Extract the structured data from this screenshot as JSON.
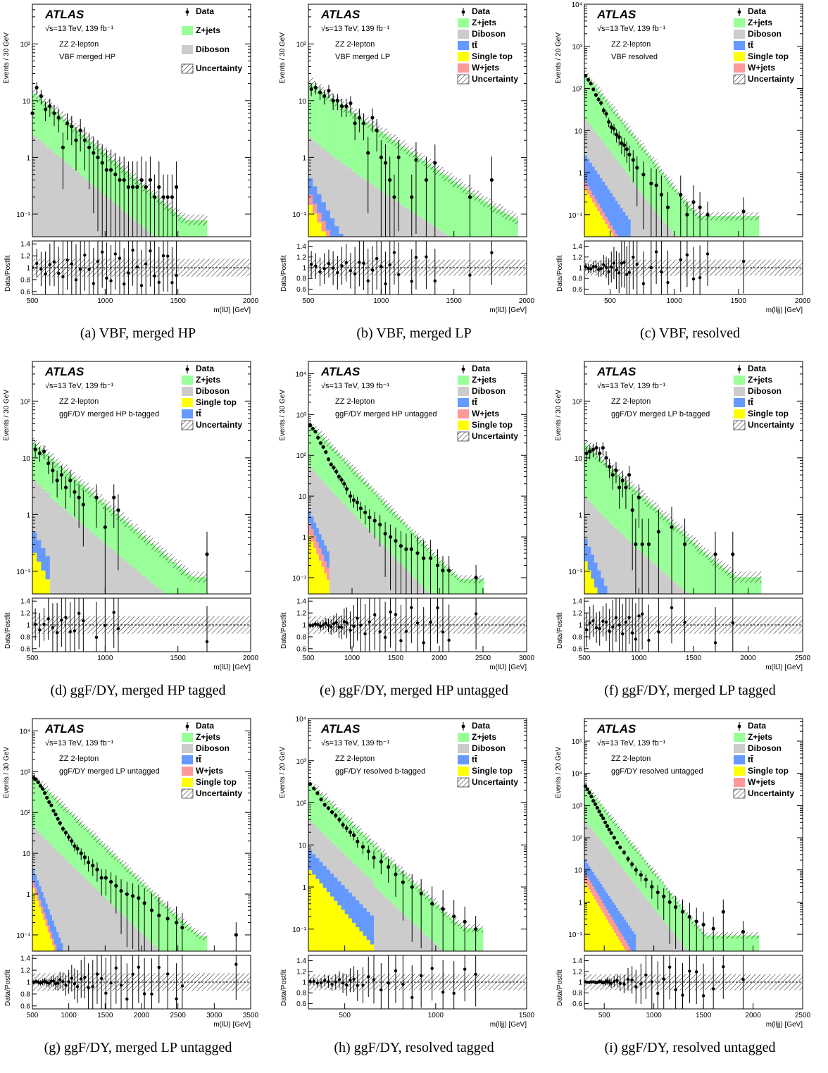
{
  "legend_names": {
    "data": "Data",
    "zjets": "Z+jets",
    "diboson": "Diboson",
    "ttbar": "tt̄",
    "singletop": "Single top",
    "wjets": "W+jets",
    "unc": "Uncertainty"
  },
  "colors": {
    "zjets": "#99ff99",
    "diboson": "#cccccc",
    "ttbar": "#6699ff",
    "singletop": "#ffff00",
    "wjets": "#ff9999",
    "data": "#000000"
  },
  "atlas_label": "ATLAS",
  "energy_lumi": "√s=13 TeV, 139 fb⁻¹",
  "channel": "ZZ 2-lepton",
  "ratio_ylabel": "Data/Postfit",
  "chart_data": [
    {
      "id": "a",
      "type": "histogram",
      "caption": "(a)  VBF, merged HP",
      "region": "VBF merged HP",
      "ylabel": "Events / 30 GeV",
      "xlabel": "m(llJ) [GeV]",
      "xlim": [
        500,
        2000
      ],
      "ylim": [
        0.04,
        500
      ],
      "ylog": true,
      "xticks": [
        500,
        1000,
        1500,
        2000
      ],
      "legend": [
        "data",
        "zjets",
        "diboson",
        "unc"
      ],
      "binw": 30,
      "z_start": 11,
      "z_decay": 0.005,
      "d_frac": 0.22,
      "z_floor": 0.06,
      "top_end": 1250,
      "t_frac": 0,
      "st_frac": 0,
      "w_frac": 0,
      "data_x": [
        500,
        530,
        560,
        590,
        620,
        650,
        680,
        710,
        740,
        770,
        800,
        830,
        860,
        890,
        920,
        950,
        980,
        1010,
        1040,
        1070,
        1100,
        1130,
        1160,
        1190,
        1220,
        1250,
        1280,
        1310,
        1340,
        1370,
        1400,
        1430,
        1460,
        1490
      ],
      "data_y": [
        6,
        17,
        12,
        7,
        8,
        6,
        5,
        1.5,
        4,
        3.5,
        2,
        3,
        2,
        1.5,
        1.2,
        1,
        0.8,
        0.6,
        0.6,
        0.5,
        0.4,
        0.4,
        0.3,
        0.3,
        0.3,
        0.4,
        0.3,
        0.4,
        0.2,
        0.3,
        0.2,
        0.2,
        0.2,
        0.3
      ],
      "ratio_ylim": [
        0.55,
        1.45
      ],
      "ratio_ticks": [
        0.6,
        0.8,
        1,
        1.2,
        1.4
      ]
    },
    {
      "id": "b",
      "type": "histogram",
      "caption": "(b)  VBF, merged LP",
      "region": "VBF merged LP",
      "ylabel": "Events / 30 GeV",
      "xlabel": "m(llJ) [GeV]",
      "xlim": [
        500,
        2000
      ],
      "ylim": [
        0.04,
        500
      ],
      "ylog": true,
      "xticks": [
        500,
        1000,
        1500,
        2000
      ],
      "legend": [
        "data",
        "zjets",
        "diboson",
        "ttbar",
        "singletop",
        "wjets",
        "unc"
      ],
      "binw": 30,
      "z_start": 18,
      "z_decay": 0.004,
      "d_frac": 0.1,
      "z_floor": 0.06,
      "top_end": 1500,
      "t_frac": 0.012,
      "st_frac": 0.008,
      "w_frac": 0.004,
      "data_x": [
        520,
        550,
        580,
        610,
        640,
        670,
        700,
        730,
        760,
        790,
        820,
        850,
        880,
        910,
        940,
        970,
        1000,
        1030,
        1060,
        1090,
        1120,
        1210,
        1240,
        1310,
        1370,
        1610,
        1760
      ],
      "data_y": [
        16,
        17,
        14,
        12,
        15,
        10,
        10,
        8,
        8,
        9,
        4,
        5,
        4,
        1.2,
        5,
        3,
        1,
        0.8,
        0.4,
        0.2,
        1,
        0.2,
        0.9,
        0.4,
        0.8,
        0.2,
        0.4
      ],
      "ratio_ylim": [
        0.5,
        1.5
      ],
      "ratio_ticks": [
        0.6,
        0.8,
        1,
        1.2,
        1.4
      ]
    },
    {
      "id": "c",
      "type": "histogram",
      "caption": "(c)  VBF, resolved",
      "region": "VBF resolved",
      "ylabel": "Events / 20 GeV",
      "xlabel": "m(lljj) [GeV]",
      "xlim": [
        300,
        2000
      ],
      "ylim": [
        0.03,
        10000
      ],
      "ylog": true,
      "xticks": [
        500,
        1000,
        1500,
        2000
      ],
      "legend": [
        "data",
        "zjets",
        "diboson",
        "ttbar",
        "singletop",
        "wjets",
        "unc"
      ],
      "binw": 20,
      "z_start": 200,
      "z_decay": 0.009,
      "d_frac": 0.08,
      "z_floor": 0.07,
      "top_end": 650,
      "t_frac": 0.01,
      "st_frac": 0.002,
      "w_frac": 0.001,
      "data_x": [
        310,
        330,
        350,
        370,
        390,
        410,
        430,
        450,
        470,
        490,
        510,
        530,
        550,
        570,
        590,
        610,
        630,
        650,
        680,
        710,
        760,
        820,
        860,
        900,
        950,
        1050,
        1100,
        1150,
        1200,
        1260,
        1540
      ],
      "data_y": [
        200,
        160,
        130,
        95,
        70,
        55,
        45,
        30,
        25,
        16,
        12,
        11,
        8,
        7,
        5,
        4.5,
        3.6,
        2.7,
        2,
        1.3,
        0.9,
        0.55,
        0.5,
        0.3,
        0.15,
        0.3,
        0.1,
        0.2,
        0.15,
        0.1,
        0.12
      ],
      "ratio_ylim": [
        0.5,
        1.5
      ],
      "ratio_ticks": [
        0.6,
        0.8,
        1,
        1.2,
        1.4
      ]
    },
    {
      "id": "d",
      "type": "histogram",
      "caption": "(d)  ggF/DY, merged HP tagged",
      "region": "ggF/DY merged HP b-tagged",
      "ylabel": "Events / 30 GeV",
      "xlabel": "m(llJ) [GeV]",
      "xlim": [
        500,
        2000
      ],
      "ylim": [
        0.04,
        500
      ],
      "ylog": true,
      "xticks": [
        500,
        1000,
        1500,
        2000
      ],
      "legend": [
        "data",
        "zjets",
        "diboson",
        "singletop",
        "ttbar",
        "unc"
      ],
      "binw": 30,
      "z_start": 14,
      "z_decay": 0.005,
      "d_frac": 0.25,
      "z_floor": 0.06,
      "top_end": 620,
      "t_frac": 0.02,
      "st_frac": 0.015,
      "w_frac": 0,
      "data_x": [
        520,
        550,
        580,
        610,
        640,
        670,
        700,
        730,
        760,
        790,
        820,
        850,
        940,
        1000,
        1060,
        1090,
        1700
      ],
      "data_y": [
        14,
        12,
        13,
        8,
        6,
        4,
        5,
        3,
        4,
        2.5,
        2,
        1.5,
        2,
        0.6,
        2,
        1.2,
        0.2
      ],
      "ratio_ylim": [
        0.55,
        1.45
      ],
      "ratio_ticks": [
        0.6,
        0.8,
        1,
        1.2,
        1.4
      ]
    },
    {
      "id": "e",
      "type": "histogram",
      "caption": "(e)  ggF/DY, merged HP untagged",
      "region": "ggF/DY merged HP untagged",
      "ylabel": "Events / 30 GeV",
      "xlabel": "m(llJ) [GeV]",
      "xlim": [
        500,
        3000
      ],
      "ylim": [
        0.04,
        20000
      ],
      "ylog": true,
      "xticks": [
        500,
        1000,
        1500,
        2000,
        2500,
        3000
      ],
      "legend": [
        "data",
        "zjets",
        "diboson",
        "ttbar",
        "wjets",
        "singletop",
        "unc"
      ],
      "binw": 30,
      "z_start": 550,
      "z_decay": 0.0052,
      "d_frac": 0.09,
      "z_floor": 0.07,
      "top_end": 720,
      "t_frac": 0.004,
      "st_frac": 0.002,
      "w_frac": 0.002,
      "data_x": [
        520,
        550,
        580,
        610,
        640,
        670,
        700,
        730,
        760,
        790,
        820,
        850,
        880,
        910,
        940,
        980,
        1020,
        1060,
        1100,
        1150,
        1200,
        1260,
        1320,
        1380,
        1440,
        1500,
        1560,
        1620,
        1680,
        1750,
        1820,
        1900,
        1980,
        2040,
        2110,
        2420
      ],
      "data_y": [
        550,
        450,
        380,
        270,
        200,
        160,
        120,
        80,
        60,
        50,
        40,
        30,
        25,
        20,
        15,
        10,
        8,
        7,
        5,
        4,
        3,
        2.5,
        2,
        1.2,
        1,
        0.8,
        0.6,
        0.5,
        0.5,
        0.4,
        0.3,
        0.3,
        0.2,
        0.15,
        0.15,
        0.1
      ],
      "ratio_ylim": [
        0.55,
        1.45
      ],
      "ratio_ticks": [
        0.6,
        0.8,
        1,
        1.2,
        1.4
      ]
    },
    {
      "id": "f",
      "type": "histogram",
      "caption": "(f)  ggF/DY, merged LP tagged",
      "region": "ggF/DY merged LP b-tagged",
      "ylabel": "Events / 30 GeV",
      "xlabel": "m(llJ) [GeV]",
      "xlim": [
        500,
        2500
      ],
      "ylim": [
        0.04,
        500
      ],
      "ylog": true,
      "xticks": [
        500,
        1000,
        1500,
        2000,
        2500
      ],
      "legend": [
        "data",
        "zjets",
        "diboson",
        "ttbar",
        "singletop",
        "unc"
      ],
      "binw": 30,
      "z_start": 15,
      "z_decay": 0.004,
      "d_frac": 0.11,
      "z_floor": 0.06,
      "top_end": 900,
      "t_frac": 0.015,
      "st_frac": 0.01,
      "w_frac": 0,
      "data_x": [
        520,
        550,
        580,
        610,
        640,
        670,
        700,
        730,
        760,
        790,
        820,
        850,
        880,
        910,
        940,
        970,
        1000,
        1030,
        1090,
        1180,
        1300,
        1420,
        1700,
        1860
      ],
      "data_y": [
        12,
        13,
        14,
        15,
        12,
        15,
        10,
        7,
        5,
        6,
        3,
        4,
        3,
        5,
        1.2,
        0.3,
        2,
        0.3,
        0.3,
        0.5,
        0.6,
        0.3,
        0.2,
        0.2
      ],
      "ratio_ylim": [
        0.55,
        1.45
      ],
      "ratio_ticks": [
        0.6,
        0.8,
        1,
        1.2,
        1.4
      ]
    },
    {
      "id": "g",
      "type": "histogram",
      "caption": "(g)  ggF/DY, merged LP untagged",
      "region": "ggF/DY merged LP untagged",
      "ylabel": "Events / 30 GeV",
      "xlabel": "m(llJ) [GeV]",
      "xlim": [
        500,
        3500
      ],
      "ylim": [
        0.04,
        20000
      ],
      "ylog": true,
      "xticks": [
        500,
        1000,
        1500,
        2000,
        2500,
        3000,
        3500
      ],
      "legend": [
        "data",
        "zjets",
        "diboson",
        "ttbar",
        "wjets",
        "singletop",
        "unc"
      ],
      "binw": 30,
      "z_start": 700,
      "z_decay": 0.004,
      "d_frac": 0.06,
      "z_floor": 0.07,
      "top_end": 920,
      "t_frac": 0.003,
      "st_frac": 0.002,
      "w_frac": 0.001,
      "data_x": [
        520,
        550,
        580,
        610,
        640,
        670,
        700,
        730,
        760,
        790,
        820,
        850,
        880,
        920,
        960,
        1000,
        1040,
        1080,
        1120,
        1170,
        1220,
        1270,
        1330,
        1390,
        1450,
        1510,
        1580,
        1650,
        1720,
        1800,
        1880,
        1960,
        2040,
        2140,
        2240,
        2360,
        2480,
        2560,
        3300
      ],
      "data_y": [
        700,
        650,
        550,
        450,
        380,
        300,
        230,
        180,
        150,
        110,
        90,
        70,
        55,
        40,
        32,
        25,
        20,
        15,
        13,
        10,
        8,
        6,
        5,
        4,
        2.5,
        2.5,
        2,
        1.6,
        1.2,
        1,
        0.9,
        0.8,
        0.6,
        0.4,
        0.3,
        0.25,
        0.2,
        0.15,
        0.1
      ],
      "ratio_ylim": [
        0.55,
        1.45
      ],
      "ratio_ticks": [
        0.6,
        0.8,
        1,
        1.2,
        1.4
      ]
    },
    {
      "id": "h",
      "type": "histogram",
      "caption": "(h)  ggF/DY, resolved tagged",
      "region": "ggF/DY resolved b-tagged",
      "ylabel": "Events / 20 GeV",
      "xlabel": "m(lljj) [GeV]",
      "xlim": [
        300,
        1500
      ],
      "ylim": [
        0.03,
        10000
      ],
      "ylog": true,
      "xticks": [
        500,
        1000,
        1500
      ],
      "legend": [
        "data",
        "zjets",
        "diboson",
        "ttbar",
        "singletop",
        "unc"
      ],
      "binw": 20,
      "z_start": 250,
      "z_decay": 0.0095,
      "d_frac": 0.12,
      "z_floor": 0.08,
      "top_end": 660,
      "t_frac": 0.02,
      "st_frac": 0.01,
      "w_frac": 0,
      "data_x": [
        310,
        330,
        350,
        370,
        390,
        410,
        430,
        450,
        470,
        490,
        510,
        530,
        550,
        570,
        600,
        630,
        660,
        700,
        740,
        780,
        820,
        870,
        920,
        980,
        1040,
        1100,
        1160,
        1220
      ],
      "data_y": [
        280,
        220,
        170,
        120,
        90,
        75,
        60,
        50,
        40,
        30,
        25,
        20,
        17,
        12,
        9,
        7,
        5,
        4,
        3,
        2,
        1.3,
        1,
        0.7,
        0.4,
        0.3,
        0.2,
        0.15,
        0.1
      ],
      "ratio_ylim": [
        0.5,
        1.5
      ],
      "ratio_ticks": [
        0.6,
        0.8,
        1,
        1.2,
        1.4
      ]
    },
    {
      "id": "i",
      "type": "histogram",
      "caption": "(i)  ggF/DY, resolved untagged",
      "region": "ggF/DY resolved untagged",
      "ylabel": "Events / 20 GeV",
      "xlabel": "m(lljj) [GeV]",
      "xlim": [
        300,
        2500
      ],
      "ylim": [
        0.03,
        500000
      ],
      "ylog": true,
      "xticks": [
        500,
        1000,
        1500,
        2000,
        2500
      ],
      "legend": [
        "data",
        "zjets",
        "diboson",
        "ttbar",
        "singletop",
        "wjets",
        "unc"
      ],
      "binw": 20,
      "z_start": 4000,
      "z_decay": 0.009,
      "d_frac": 0.08,
      "z_floor": 0.07,
      "top_end": 820,
      "t_frac": 0.003,
      "st_frac": 0.001,
      "w_frac": 0.001,
      "data_x": [
        310,
        330,
        350,
        370,
        390,
        410,
        430,
        450,
        470,
        490,
        510,
        530,
        550,
        570,
        600,
        630,
        660,
        700,
        740,
        780,
        820,
        870,
        920,
        980,
        1040,
        1100,
        1160,
        1220,
        1290,
        1360,
        1430,
        1500,
        1600,
        1700,
        1900
      ],
      "data_y": [
        4000,
        3200,
        2500,
        1900,
        1400,
        1100,
        850,
        650,
        500,
        400,
        300,
        230,
        180,
        140,
        100,
        70,
        50,
        35,
        22,
        15,
        10,
        7,
        5,
        3,
        2,
        1.5,
        1,
        0.7,
        0.5,
        0.35,
        0.25,
        0.2,
        0.15,
        0.5,
        0.12
      ],
      "ratio_ylim": [
        0.5,
        1.5
      ],
      "ratio_ticks": [
        0.6,
        0.8,
        1,
        1.2,
        1.4
      ]
    }
  ]
}
